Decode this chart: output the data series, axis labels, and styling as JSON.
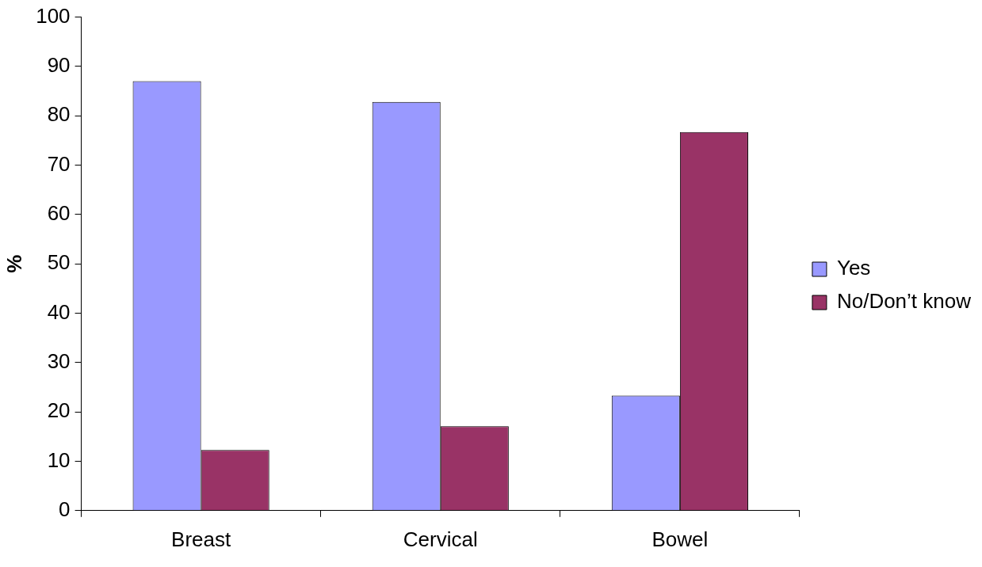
{
  "chart_data": {
    "type": "bar",
    "ylabel": "%",
    "categories": [
      "Breast",
      "Cervical",
      "Bowel"
    ],
    "series": [
      {
        "name": "Yes",
        "color": "#9999ff",
        "values": [
          87,
          82.8,
          23.3
        ]
      },
      {
        "name": "No/Don’t know",
        "color": "#993366",
        "values": [
          12.3,
          17.1,
          76.7
        ]
      }
    ],
    "ylim": [
      0,
      100
    ],
    "yticks": [
      0,
      10,
      20,
      30,
      40,
      50,
      60,
      70,
      80,
      90,
      100
    ],
    "grid": false,
    "legend": "right"
  }
}
